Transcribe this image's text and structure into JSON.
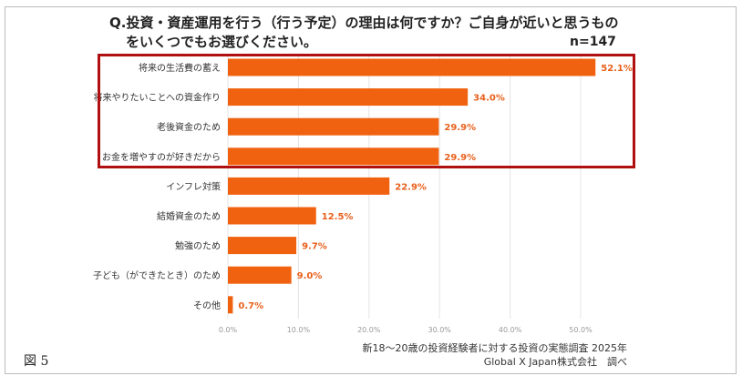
{
  "chart_data": {
    "type": "bar",
    "orientation": "horizontal",
    "title": "Q.投資・資産運用を行う（行う予定）の理由は何ですか？ご自身が近いと思うもの",
    "title_line2": "をいくつでもお選びください。",
    "sample": "n=147",
    "categories": [
      "将来の生活費の蓄え",
      "将来やりたいことへの資金作り",
      "老後資金のため",
      "お金を増やすのが好きだから",
      "インフレ対策",
      "結婚資金のため",
      "勉強のため",
      "子ども（ができたとき）のため",
      "その他"
    ],
    "values": [
      52.1,
      34.0,
      29.9,
      29.9,
      22.9,
      12.5,
      9.7,
      9.0,
      0.7
    ],
    "value_labels": [
      "52.1%",
      "34.0%",
      "29.9%",
      "29.9%",
      "22.9%",
      "12.5%",
      "9.7%",
      "9.0%",
      "0.7%"
    ],
    "xlim": [
      0,
      50
    ],
    "x_ticks": [
      "0.0%",
      "10.0%",
      "20.0%",
      "30.0%",
      "40.0%",
      "50.0%"
    ],
    "grid": true,
    "highlighted_categories": 4,
    "bar_color": "#f0620f",
    "label_color": "#e8601c",
    "highlight_color": "#b01010"
  },
  "figure_label": "図 5",
  "source_line1": "新18～20歳の投資経験者に対する投資の実態調査 2025年",
  "source_line2": "Global X Japan株式会社　調べ"
}
